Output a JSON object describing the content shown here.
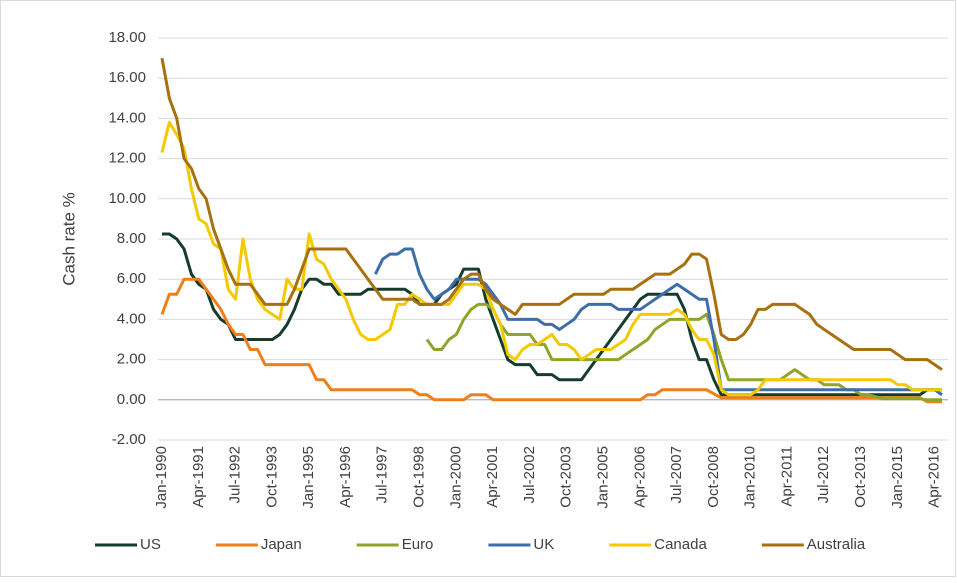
{
  "chart_data": {
    "type": "line",
    "y_label": "Cash rate %",
    "categories": [
      "Jan-1990",
      null,
      null,
      null,
      null,
      "Apr-1991",
      null,
      null,
      null,
      null,
      "Jul-1992",
      null,
      null,
      null,
      null,
      "Oct-1993",
      null,
      null,
      null,
      null,
      "Jan-1995",
      null,
      null,
      null,
      null,
      "Apr-1996",
      null,
      null,
      null,
      null,
      "Jul-1997",
      null,
      null,
      null,
      null,
      "Oct-1998",
      null,
      null,
      null,
      null,
      "Jan-2000",
      null,
      null,
      null,
      null,
      "Apr-2001",
      null,
      null,
      null,
      null,
      "Jul-2002",
      null,
      null,
      null,
      null,
      "Oct-2003",
      null,
      null,
      null,
      null,
      "Jan-2005",
      null,
      null,
      null,
      null,
      "Apr-2006",
      null,
      null,
      null,
      null,
      "Jul-2007",
      null,
      null,
      null,
      null,
      "Oct-2008",
      null,
      null,
      null,
      null,
      "Jan-2010",
      null,
      null,
      null,
      null,
      "Apr-2011",
      null,
      null,
      null,
      null,
      "Jul-2012",
      null,
      null,
      null,
      null,
      "Oct-2013",
      null,
      null,
      null,
      null,
      "Jan-2015",
      null,
      null,
      null,
      null,
      "Apr-2016",
      null
    ],
    "series": [
      {
        "name": "US",
        "color": "#163d2c",
        "values": [
          8.25,
          8.25,
          8,
          7.5,
          6.25,
          5.75,
          5.5,
          4.5,
          4,
          3.75,
          3,
          3,
          3,
          3,
          3,
          3,
          3.25,
          3.75,
          4.5,
          5.5,
          6,
          6,
          5.75,
          5.75,
          5.25,
          5.25,
          5.25,
          5.25,
          5.5,
          5.5,
          5.5,
          5.5,
          5.5,
          5.5,
          5.25,
          4.75,
          4.75,
          4.75,
          5.25,
          5.5,
          5.75,
          6.5,
          6.5,
          6.5,
          5,
          4,
          3,
          2,
          1.75,
          1.75,
          1.75,
          1.25,
          1.25,
          1.25,
          1,
          1,
          1,
          1,
          1.5,
          2,
          2.5,
          3,
          3.5,
          4,
          4.5,
          5,
          5.25,
          5.25,
          5.25,
          5.25,
          5.25,
          4.5,
          3,
          2,
          2,
          1,
          0.25,
          0.25,
          0.25,
          0.25,
          0.25,
          0.25,
          0.25,
          0.25,
          0.25,
          0.25,
          0.25,
          0.25,
          0.25,
          0.25,
          0.25,
          0.25,
          0.25,
          0.25,
          0.25,
          0.25,
          0.25,
          0.25,
          0.25,
          0.25,
          0.25,
          0.25,
          0.25,
          0.25,
          0.5,
          0.5,
          0.5
        ]
      },
      {
        "name": "Japan",
        "color": "#f07e1b",
        "values": [
          4.25,
          5.25,
          5.25,
          6,
          6,
          6,
          5.5,
          5,
          4.5,
          3.75,
          3.25,
          3.25,
          2.5,
          2.5,
          1.75,
          1.75,
          1.75,
          1.75,
          1.75,
          1.75,
          1.75,
          1,
          1,
          0.5,
          0.5,
          0.5,
          0.5,
          0.5,
          0.5,
          0.5,
          0.5,
          0.5,
          0.5,
          0.5,
          0.5,
          0.25,
          0.25,
          0,
          0,
          0,
          0,
          0,
          0.25,
          0.25,
          0.25,
          0,
          0,
          0,
          0,
          0,
          0,
          0,
          0,
          0,
          0,
          0,
          0,
          0,
          0,
          0,
          0,
          0,
          0,
          0,
          0,
          0,
          0.25,
          0.25,
          0.5,
          0.5,
          0.5,
          0.5,
          0.5,
          0.5,
          0.5,
          0.3,
          0.1,
          0.1,
          0.1,
          0.1,
          0.1,
          0.1,
          0.1,
          0.1,
          0.1,
          0.1,
          0.1,
          0.1,
          0.1,
          0.1,
          0.1,
          0.1,
          0.1,
          0.1,
          0.1,
          0.1,
          0.1,
          0.1,
          0.1,
          0.1,
          0.1,
          0.1,
          0.1,
          0.1,
          -0.1,
          -0.1,
          -0.1
        ]
      },
      {
        "name": "Euro",
        "color": "#8ea52a",
        "values": [
          null,
          null,
          null,
          null,
          null,
          null,
          null,
          null,
          null,
          null,
          null,
          null,
          null,
          null,
          null,
          null,
          null,
          null,
          null,
          null,
          null,
          null,
          null,
          null,
          null,
          null,
          null,
          null,
          null,
          null,
          null,
          null,
          null,
          null,
          null,
          null,
          3,
          2.5,
          2.5,
          3,
          3.25,
          4,
          4.5,
          4.75,
          4.75,
          4.5,
          3.75,
          3.25,
          3.25,
          3.25,
          3.25,
          2.75,
          2.75,
          2,
          2,
          2,
          2,
          2,
          2,
          2,
          2,
          2,
          2,
          2.25,
          2.5,
          2.75,
          3,
          3.5,
          3.75,
          4,
          4,
          4,
          4,
          4,
          4.25,
          3.25,
          2,
          1,
          1,
          1,
          1,
          1,
          1,
          1,
          1,
          1.25,
          1.5,
          1.25,
          1,
          1,
          0.75,
          0.75,
          0.75,
          0.5,
          0.5,
          0.25,
          0.25,
          0.15,
          0.05,
          0.05,
          0.05,
          0.05,
          0.05,
          0.05,
          0,
          0,
          0
        ]
      },
      {
        "name": "UK",
        "color": "#3e6ea7",
        "values": [
          null,
          null,
          null,
          null,
          null,
          null,
          null,
          null,
          null,
          null,
          null,
          null,
          null,
          null,
          null,
          null,
          null,
          null,
          null,
          null,
          null,
          null,
          null,
          null,
          null,
          null,
          null,
          null,
          null,
          6.25,
          7,
          7.25,
          7.25,
          7.5,
          7.5,
          6.25,
          5.5,
          5,
          5.25,
          5.5,
          6,
          6,
          6,
          6,
          5.75,
          5.25,
          4.75,
          4,
          4,
          4,
          4,
          4,
          3.75,
          3.75,
          3.5,
          3.75,
          4,
          4.5,
          4.75,
          4.75,
          4.75,
          4.75,
          4.5,
          4.5,
          4.5,
          4.5,
          4.75,
          5,
          5.25,
          5.5,
          5.75,
          5.5,
          5.25,
          5,
          5,
          3,
          0.5,
          0.5,
          0.5,
          0.5,
          0.5,
          0.5,
          0.5,
          0.5,
          0.5,
          0.5,
          0.5,
          0.5,
          0.5,
          0.5,
          0.5,
          0.5,
          0.5,
          0.5,
          0.5,
          0.5,
          0.5,
          0.5,
          0.5,
          0.5,
          0.5,
          0.5,
          0.5,
          0.5,
          0.5,
          0.5,
          0.25
        ]
      },
      {
        "name": "Canada",
        "color": "#f5c900",
        "values": [
          12.3,
          13.8,
          13.2,
          12.5,
          10.5,
          9,
          8.75,
          7.75,
          7.5,
          5.5,
          5,
          8,
          6,
          5,
          4.5,
          4.25,
          4,
          6,
          5.5,
          5.5,
          8.25,
          7,
          6.75,
          6,
          5.5,
          5,
          4,
          3.25,
          3,
          3,
          3.25,
          3.5,
          4.75,
          4.75,
          5.25,
          5,
          4.75,
          4.75,
          4.75,
          4.75,
          5.25,
          5.75,
          5.75,
          5.75,
          5.5,
          4.5,
          3.75,
          2.25,
          2,
          2.5,
          2.75,
          2.75,
          3,
          3.25,
          2.75,
          2.75,
          2.5,
          2,
          2.25,
          2.5,
          2.5,
          2.5,
          2.75,
          3,
          3.75,
          4.25,
          4.25,
          4.25,
          4.25,
          4.25,
          4.5,
          4.25,
          3.5,
          3,
          3,
          2.25,
          0.5,
          0.25,
          0.25,
          0.25,
          0.25,
          0.5,
          1,
          1,
          1,
          1,
          1,
          1,
          1,
          1,
          1,
          1,
          1,
          1,
          1,
          1,
          1,
          1,
          1,
          1,
          0.75,
          0.75,
          0.5,
          0.5,
          0.5,
          0.5,
          0.5
        ]
      },
      {
        "name": "Australia",
        "color": "#a7710f",
        "values": [
          17,
          15,
          14,
          12,
          11.5,
          10.5,
          10,
          8.5,
          7.5,
          6.5,
          5.75,
          5.75,
          5.75,
          5.25,
          4.75,
          4.75,
          4.75,
          4.75,
          5.5,
          6.5,
          7.5,
          7.5,
          7.5,
          7.5,
          7.5,
          7.5,
          7,
          6.5,
          6,
          5.5,
          5,
          5,
          5,
          5,
          5,
          4.75,
          4.75,
          4.75,
          4.75,
          5,
          5.5,
          6,
          6.25,
          6.25,
          5.5,
          5,
          4.75,
          4.5,
          4.25,
          4.75,
          4.75,
          4.75,
          4.75,
          4.75,
          4.75,
          5,
          5.25,
          5.25,
          5.25,
          5.25,
          5.25,
          5.5,
          5.5,
          5.5,
          5.5,
          5.75,
          6,
          6.25,
          6.25,
          6.25,
          6.5,
          6.75,
          7.25,
          7.25,
          7,
          5.25,
          3.25,
          3,
          3,
          3.25,
          3.75,
          4.5,
          4.5,
          4.75,
          4.75,
          4.75,
          4.75,
          4.5,
          4.25,
          3.75,
          3.5,
          3.25,
          3,
          2.75,
          2.5,
          2.5,
          2.5,
          2.5,
          2.5,
          2.5,
          2.25,
          2,
          2,
          2,
          2,
          1.75,
          1.5
        ]
      }
    ],
    "ylim": [
      -2,
      18
    ],
    "yticks": [
      {
        "value": -2,
        "label": "-2.00"
      },
      {
        "value": 0,
        "label": "0.00"
      },
      {
        "value": 2,
        "label": "2.00"
      },
      {
        "value": 4,
        "label": "4.00"
      },
      {
        "value": 6,
        "label": "6.00"
      },
      {
        "value": 8,
        "label": "8.00"
      },
      {
        "value": 10,
        "label": "10.00"
      },
      {
        "value": 12,
        "label": "12.00"
      },
      {
        "value": 14,
        "label": "14.00"
      },
      {
        "value": 16,
        "label": "16.00"
      },
      {
        "value": 18,
        "label": "18.00"
      }
    ],
    "grid": true,
    "legend": "bottom"
  }
}
